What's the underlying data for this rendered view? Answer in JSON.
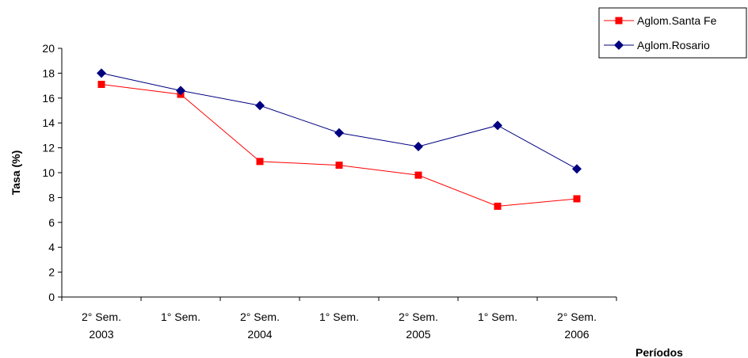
{
  "chart_data": {
    "type": "line",
    "title": "",
    "ylabel": "Tasa (%)",
    "xlabel": "Períodos",
    "ylim": [
      0,
      20
    ],
    "ytick_step": 2,
    "categories": [
      [
        "2° Sem.",
        "2003"
      ],
      [
        "1° Sem.",
        ""
      ],
      [
        "2° Sem.",
        "2004"
      ],
      [
        "1° Sem.",
        ""
      ],
      [
        "2° Sem.",
        "2005"
      ],
      [
        "1° Sem.",
        ""
      ],
      [
        "2° Sem.",
        "2006"
      ]
    ],
    "series": [
      {
        "name": "Aglom.Santa Fe",
        "color": "#ff0000",
        "marker": "square",
        "values": [
          17.1,
          16.3,
          10.9,
          10.6,
          9.8,
          7.3,
          7.9
        ]
      },
      {
        "name": "Aglom.Rosario",
        "color": "#000080",
        "marker": "diamond",
        "values": [
          18.0,
          16.6,
          15.4,
          13.2,
          12.1,
          13.8,
          10.3
        ]
      }
    ],
    "grid": false,
    "legend_position": "top-right"
  }
}
